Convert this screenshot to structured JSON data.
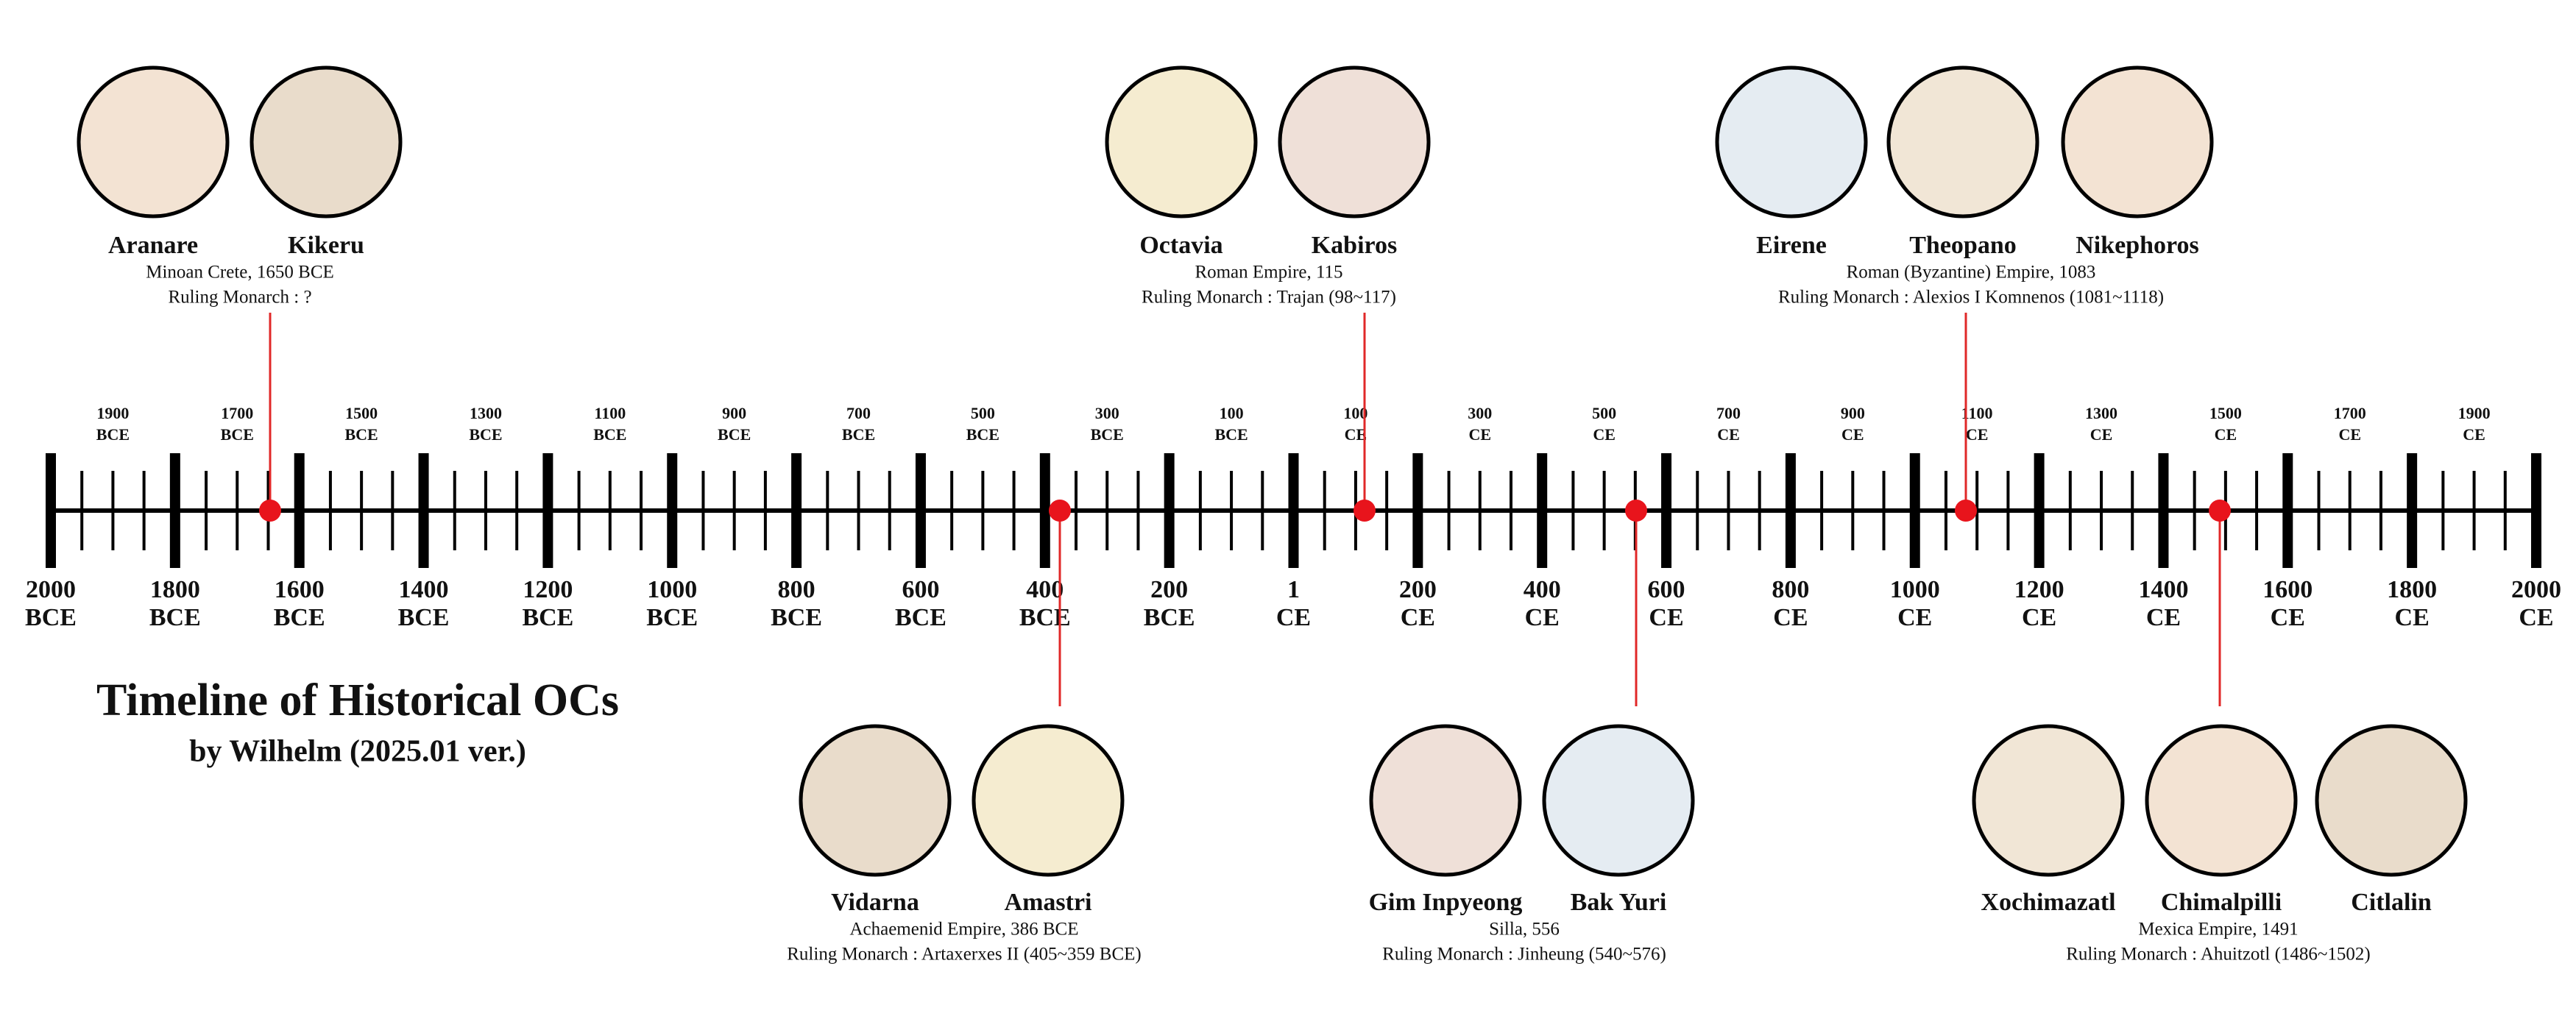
{
  "title": "Timeline of Historical OCs",
  "subtitle": "by Wilhelm (2025.01 ver.)",
  "axis": {
    "major_labels": [
      [
        "2000",
        "BCE"
      ],
      [
        "1800",
        "BCE"
      ],
      [
        "1600",
        "BCE"
      ],
      [
        "1400",
        "BCE"
      ],
      [
        "1200",
        "BCE"
      ],
      [
        "1000",
        "BCE"
      ],
      [
        "800",
        "BCE"
      ],
      [
        "600",
        "BCE"
      ],
      [
        "400",
        "BCE"
      ],
      [
        "200",
        "BCE"
      ],
      [
        "1",
        "CE"
      ],
      [
        "200",
        "CE"
      ],
      [
        "400",
        "CE"
      ],
      [
        "600",
        "CE"
      ],
      [
        "800",
        "CE"
      ],
      [
        "1000",
        "CE"
      ],
      [
        "1200",
        "CE"
      ],
      [
        "1400",
        "CE"
      ],
      [
        "1600",
        "CE"
      ],
      [
        "1800",
        "CE"
      ],
      [
        "2000",
        "CE"
      ]
    ],
    "minor_labels": [
      [
        "1900",
        "BCE"
      ],
      [
        "1700",
        "BCE"
      ],
      [
        "1500",
        "BCE"
      ],
      [
        "1300",
        "BCE"
      ],
      [
        "1100",
        "BCE"
      ],
      [
        "900",
        "BCE"
      ],
      [
        "700",
        "BCE"
      ],
      [
        "500",
        "BCE"
      ],
      [
        "300",
        "BCE"
      ],
      [
        "100",
        "BCE"
      ],
      [
        "100",
        "CE"
      ],
      [
        "300",
        "CE"
      ],
      [
        "500",
        "CE"
      ],
      [
        "700",
        "CE"
      ],
      [
        "900",
        "CE"
      ],
      [
        "1100",
        "CE"
      ],
      [
        "1300",
        "CE"
      ],
      [
        "1500",
        "CE"
      ],
      [
        "1700",
        "CE"
      ],
      [
        "1900",
        "CE"
      ]
    ]
  },
  "events": [
    {
      "characters": [
        "Aranare",
        "Kikeru"
      ],
      "info": "Minoan Crete, 1650 BCE",
      "monarch": "Ruling Monarch : ?"
    },
    {
      "characters": [
        "Vidarna",
        "Amastri"
      ],
      "info": "Achaemenid Empire, 386 BCE",
      "monarch": "Ruling Monarch : Artaxerxes II (405~359 BCE)"
    },
    {
      "characters": [
        "Octavia",
        "Kabiros"
      ],
      "info": "Roman Empire, 115",
      "monarch": "Ruling Monarch : Trajan (98~117)"
    },
    {
      "characters": [
        "Gim Inpyeong",
        "Bak Yuri"
      ],
      "info": "Silla, 556",
      "monarch": "Ruling Monarch : Jinheung (540~576)"
    },
    {
      "characters": [
        "Eirene",
        "Theopano",
        "Nikephoros"
      ],
      "info": "Roman (Byzantine) Empire, 1083",
      "monarch": "Ruling Monarch : Alexios I Komnenos (1081~1118)"
    },
    {
      "characters": [
        "Xochimazatl",
        "Chimalpilli",
        "Citlalin"
      ],
      "info": "Mexica Empire, 1491",
      "monarch": "Ruling Monarch : Ahuitzotl (1486~1502)"
    }
  ]
}
